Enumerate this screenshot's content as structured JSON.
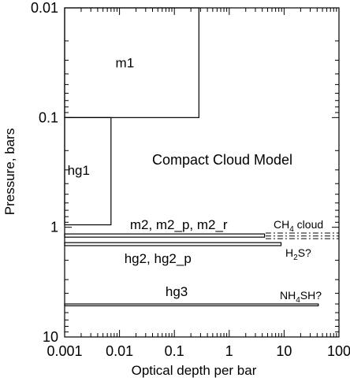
{
  "chart_data": {
    "type": "bar",
    "title": "Compact Cloud Model",
    "xlabel": "Optical depth per bar",
    "ylabel": "Pressure, bars",
    "x_scale": "log",
    "y_scale": "log",
    "y_inverted": true,
    "xlim": [
      0.001,
      100
    ],
    "ylim": [
      0.01,
      10
    ],
    "x_ticks": [
      "0.001",
      "0.01",
      "0.1",
      "1",
      "10",
      "100"
    ],
    "y_ticks": [
      "0.01",
      "0.1",
      "1",
      "10"
    ],
    "grid": false,
    "layers": [
      {
        "name": "m1",
        "depth": 0.28,
        "p_top": 0.01,
        "p_bottom": 0.1
      },
      {
        "name": "hg1",
        "depth": 0.007,
        "p_top": 0.1,
        "p_bottom": 0.95
      },
      {
        "name": "m2, m2_p, m2_r",
        "depth": 4.4,
        "p_top": 1.15,
        "p_bottom": 1.23
      },
      {
        "name": "hg2, hg2_p",
        "depth": 8.8,
        "p_top": 1.38,
        "p_bottom": 1.47
      },
      {
        "name": "hg3",
        "depth": 42,
        "p_top": 5.0,
        "p_bottom": 5.2
      }
    ],
    "annotations": {
      "ch4": {
        "pre": "CH",
        "sub": "4",
        "post": " cloud",
        "pressures": [
          1.13,
          1.2,
          1.27
        ]
      },
      "h2s": {
        "pre": "H",
        "sub": "2",
        "post": "S?"
      },
      "nh4sh": {
        "pre": "NH",
        "sub": "4",
        "post": "SH?"
      }
    }
  }
}
